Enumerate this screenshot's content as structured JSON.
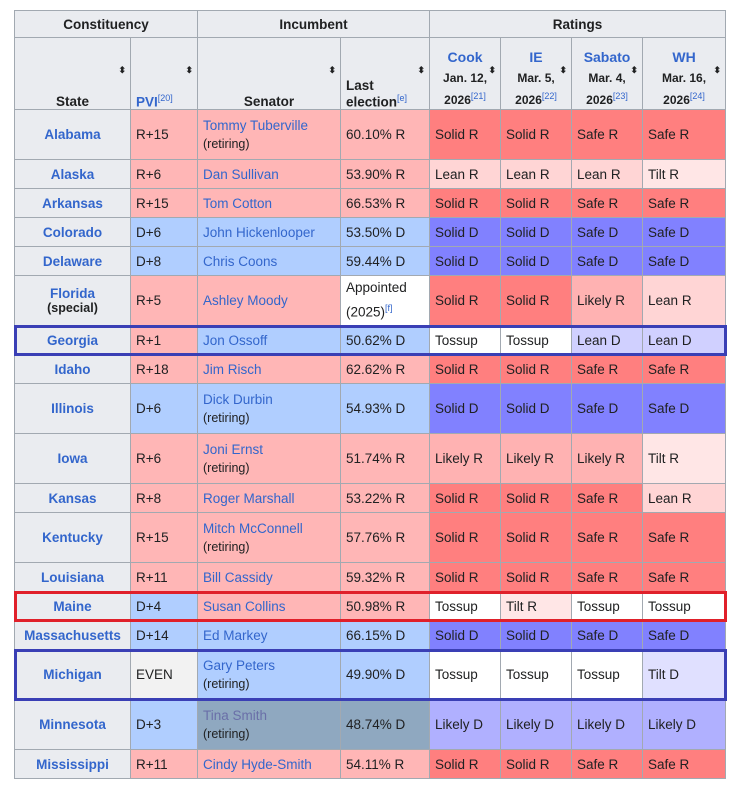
{
  "headers": {
    "constituency": "Constituency",
    "incumbent": "Incumbent",
    "ratings": "Ratings",
    "state": "State",
    "pvi": "PVI",
    "pvi_ref": "[20]",
    "senator": "Senator",
    "last_election": "Last election",
    "last_ref": "[e]",
    "sort_icon": "⬍",
    "sources": [
      {
        "name": "Cook",
        "date1": "Jan. 12,",
        "date2": "2026",
        "ref": "[21]"
      },
      {
        "name": "IE",
        "date1": "Mar. 5,",
        "date2": "2026",
        "ref": "[22]"
      },
      {
        "name": "Sabato",
        "date1": "Mar. 4,",
        "date2": "2026",
        "ref": "[23]"
      },
      {
        "name": "WH",
        "date1": "Mar. 16,",
        "date2": "2026",
        "ref": "[24]"
      }
    ]
  },
  "rows": [
    {
      "state": "Alabama",
      "special": "",
      "pvi": "R+15",
      "senator": "Tommy Tuberville",
      "retiring": "(retiring)",
      "last": "60.10% R",
      "last_ref": "",
      "ratings": [
        "Solid R",
        "Solid R",
        "Safe R",
        "Safe R"
      ]
    },
    {
      "state": "Alaska",
      "special": "",
      "pvi": "R+6",
      "senator": "Dan Sullivan",
      "retiring": "",
      "last": "53.90% R",
      "last_ref": "",
      "ratings": [
        "Lean R",
        "Lean R",
        "Lean R",
        "Tilt R"
      ]
    },
    {
      "state": "Arkansas",
      "special": "",
      "pvi": "R+15",
      "senator": "Tom Cotton",
      "retiring": "",
      "last": "66.53% R",
      "last_ref": "",
      "ratings": [
        "Solid R",
        "Solid R",
        "Safe R",
        "Safe R"
      ]
    },
    {
      "state": "Colorado",
      "special": "",
      "pvi": "D+6",
      "senator": "John Hickenlooper",
      "retiring": "",
      "last": "53.50% D",
      "last_ref": "",
      "ratings": [
        "Solid D",
        "Solid D",
        "Safe D",
        "Safe D"
      ]
    },
    {
      "state": "Delaware",
      "special": "",
      "pvi": "D+8",
      "senator": "Chris Coons",
      "retiring": "",
      "last": "59.44% D",
      "last_ref": "",
      "ratings": [
        "Solid D",
        "Solid D",
        "Safe D",
        "Safe D"
      ]
    },
    {
      "state": "Florida",
      "special": "(special)",
      "pvi": "R+5",
      "senator": "Ashley Moody",
      "retiring": "",
      "last": "Appointed",
      "last2": "(2025)",
      "last_ref": "[f]",
      "ratings": [
        "Solid R",
        "Solid R",
        "Likely R",
        "Lean R"
      ]
    },
    {
      "state": "Georgia",
      "special": "",
      "pvi": "R+1",
      "senator": "Jon Ossoff",
      "retiring": "",
      "last": "50.62% D",
      "last_ref": "",
      "ratings": [
        "Tossup",
        "Tossup",
        "Lean D",
        "Lean D"
      ]
    },
    {
      "state": "Idaho",
      "special": "",
      "pvi": "R+18",
      "senator": "Jim Risch",
      "retiring": "",
      "last": "62.62% R",
      "last_ref": "",
      "ratings": [
        "Solid R",
        "Solid R",
        "Safe R",
        "Safe R"
      ]
    },
    {
      "state": "Illinois",
      "special": "",
      "pvi": "D+6",
      "senator": "Dick Durbin",
      "retiring": "(retiring)",
      "last": "54.93% D",
      "last_ref": "",
      "ratings": [
        "Solid D",
        "Solid D",
        "Safe D",
        "Safe D"
      ]
    },
    {
      "state": "Iowa",
      "special": "",
      "pvi": "R+6",
      "senator": "Joni Ernst",
      "retiring": "(retiring)",
      "last": "51.74% R",
      "last_ref": "",
      "ratings": [
        "Likely R",
        "Likely R",
        "Likely R",
        "Tilt R"
      ]
    },
    {
      "state": "Kansas",
      "special": "",
      "pvi": "R+8",
      "senator": "Roger Marshall",
      "retiring": "",
      "last": "53.22% R",
      "last_ref": "",
      "ratings": [
        "Solid R",
        "Solid R",
        "Safe R",
        "Lean R"
      ]
    },
    {
      "state": "Kentucky",
      "special": "",
      "pvi": "R+15",
      "senator": "Mitch McConnell",
      "retiring": "(retiring)",
      "last": "57.76% R",
      "last_ref": "",
      "ratings": [
        "Solid R",
        "Solid R",
        "Safe R",
        "Safe R"
      ]
    },
    {
      "state": "Louisiana",
      "special": "",
      "pvi": "R+11",
      "senator": "Bill Cassidy",
      "retiring": "",
      "last": "59.32% R",
      "last_ref": "",
      "ratings": [
        "Solid R",
        "Solid R",
        "Safe R",
        "Safe R"
      ]
    },
    {
      "state": "Maine",
      "special": "",
      "pvi": "D+4",
      "senator": "Susan Collins",
      "retiring": "",
      "last": "50.98% R",
      "last_ref": "",
      "ratings": [
        "Tossup",
        "Tilt R",
        "Tossup",
        "Tossup"
      ]
    },
    {
      "state": "Massachusetts",
      "special": "",
      "pvi": "D+14",
      "senator": "Ed Markey",
      "retiring": "",
      "last": "66.15% D",
      "last_ref": "",
      "ratings": [
        "Solid D",
        "Solid D",
        "Safe D",
        "Safe D"
      ]
    },
    {
      "state": "Michigan",
      "special": "",
      "pvi": "EVEN",
      "senator": "Gary Peters",
      "retiring": "(retiring)",
      "last": "49.90% D",
      "last_ref": "",
      "ratings": [
        "Tossup",
        "Tossup",
        "Tossup",
        "Tilt D"
      ]
    },
    {
      "state": "Minnesota",
      "special": "",
      "pvi": "D+3",
      "senator": "Tina Smith",
      "retiring": "(retiring)",
      "last": "48.74% D",
      "last_ref": "",
      "ratings": [
        "Likely D",
        "Likely D",
        "Likely D",
        "Likely D"
      ]
    },
    {
      "state": "Mississippi",
      "special": "",
      "pvi": "R+11",
      "senator": "Cindy Hyde-Smith",
      "retiring": "",
      "last": "54.11% R",
      "last_ref": "",
      "ratings": [
        "Solid R",
        "Solid R",
        "Safe R",
        "Safe R"
      ]
    }
  ],
  "highlights": [
    {
      "state": "Georgia",
      "color": "#3a3fb5"
    },
    {
      "state": "Maine",
      "color": "#e0202a"
    },
    {
      "state": "Michigan",
      "color": "#3a3fb5"
    }
  ],
  "colors": {
    "r_incumbent": "#ffb6b6",
    "d_incumbent": "#b0ceff",
    "solid_r": "#ff7f7f",
    "solid_d": "#8181ff",
    "tossup": "#ffffff",
    "link": "#3366cc"
  }
}
